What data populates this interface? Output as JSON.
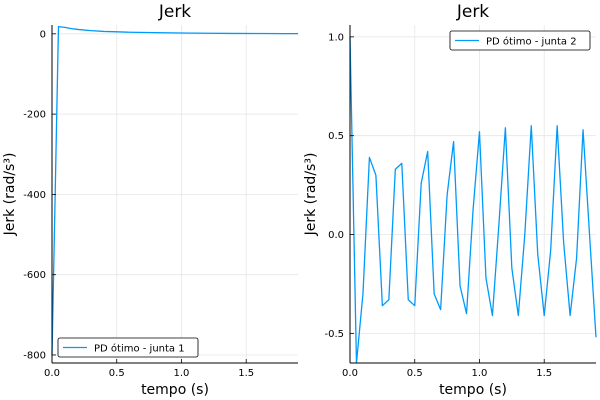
{
  "colors": {
    "series": "#009af9",
    "grid": "#e6e6e6",
    "axis": "#000000"
  },
  "chart_data": [
    {
      "type": "line",
      "title": "Jerk",
      "xlabel": "tempo (s)",
      "ylabel": "Jerk (rad/s³)",
      "xlim": [
        0,
        1.9
      ],
      "ylim": [
        -820,
        22
      ],
      "xticks": [
        0,
        0.5,
        1.0,
        1.5
      ],
      "xtick_labels": [
        "0.0",
        "0.5",
        "1.0",
        "1.5"
      ],
      "yticks": [
        0,
        -200,
        -400,
        -600,
        -800
      ],
      "ytick_labels": [
        "0",
        "-200",
        "-400",
        "-600",
        "-800"
      ],
      "grid": true,
      "legend_position": "bottom-left",
      "series": [
        {
          "name": "PD ótimo - junta 1",
          "x": [
            0.0,
            0.05,
            0.1,
            0.15,
            0.2,
            0.3,
            0.4,
            0.5,
            0.6,
            0.8,
            1.0,
            1.2,
            1.4,
            1.6,
            1.8,
            1.9
          ],
          "y": [
            -800,
            18,
            16,
            13,
            11,
            8,
            6,
            5,
            4,
            3,
            2,
            1.5,
            1,
            0.8,
            0.6,
            0.5
          ]
        }
      ]
    },
    {
      "type": "line",
      "title": "Jerk",
      "xlabel": "tempo (s)",
      "ylabel": "Jerk (rad/s³)",
      "xlim": [
        0,
        1.9
      ],
      "ylim": [
        -0.65,
        1.06
      ],
      "xticks": [
        0,
        0.5,
        1.0,
        1.5
      ],
      "xtick_labels": [
        "0.0",
        "0.5",
        "1.0",
        "1.5"
      ],
      "yticks": [
        1.0,
        0.5,
        0.0,
        -0.5
      ],
      "ytick_labels": [
        "1.0",
        "0.5",
        "0.0",
        "-0.5"
      ],
      "grid": true,
      "legend_position": "top-right",
      "series": [
        {
          "name": "PD ótimo - junta 2",
          "x": [
            0.0,
            0.05,
            0.1,
            0.15,
            0.2,
            0.25,
            0.3,
            0.35,
            0.4,
            0.45,
            0.5,
            0.55,
            0.6,
            0.65,
            0.7,
            0.75,
            0.8,
            0.85,
            0.9,
            0.95,
            1.0,
            1.05,
            1.1,
            1.15,
            1.2,
            1.25,
            1.3,
            1.35,
            1.4,
            1.45,
            1.5,
            1.55,
            1.6,
            1.65,
            1.7,
            1.75,
            1.8,
            1.85,
            1.9
          ],
          "y": [
            1.0,
            -0.65,
            -0.3,
            0.39,
            0.3,
            -0.36,
            -0.33,
            0.33,
            0.36,
            -0.33,
            -0.36,
            0.26,
            0.42,
            -0.3,
            -0.38,
            0.2,
            0.47,
            -0.26,
            -0.4,
            0.12,
            0.52,
            -0.22,
            -0.41,
            0.05,
            0.54,
            -0.17,
            -0.41,
            0.0,
            0.55,
            -0.1,
            -0.41,
            -0.08,
            0.55,
            -0.04,
            -0.41,
            -0.12,
            0.53,
            0.0,
            -0.52
          ]
        }
      ]
    }
  ]
}
